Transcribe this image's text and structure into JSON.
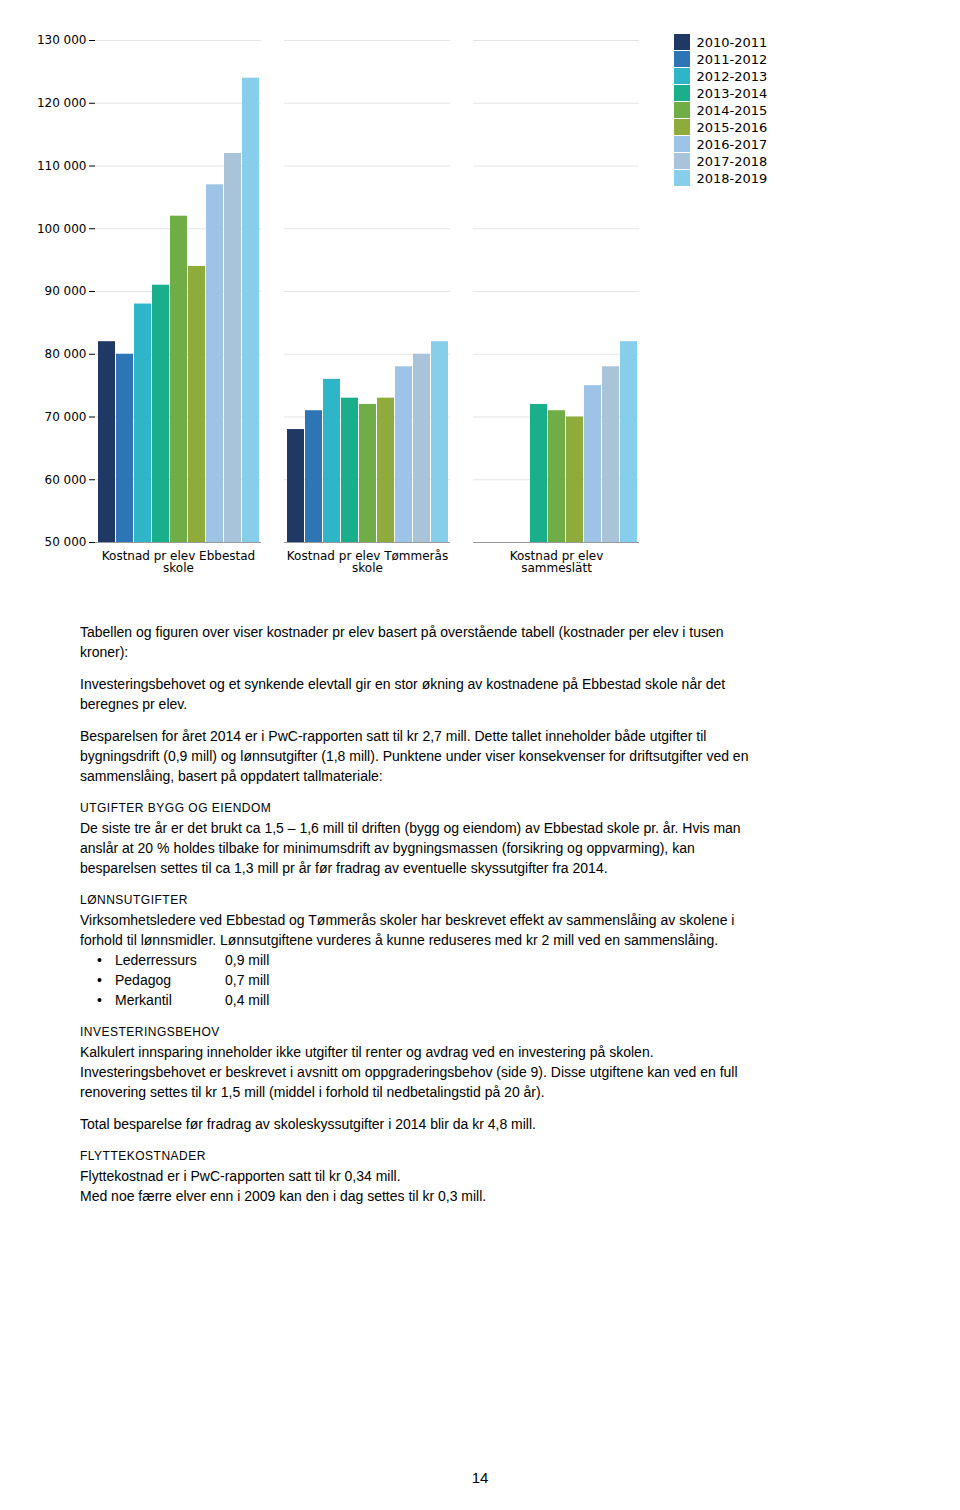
{
  "chart_data": {
    "type": "bar",
    "categories": [
      "Kostnad pr elev Ebbestad\nskole",
      "Kostnad pr elev Tømmerås\nskole",
      "Kostnad pr elev\nsammeslätt"
    ],
    "series": [
      {
        "name": "2010-2011",
        "color": "#1F3864",
        "values": [
          82000,
          68000,
          null
        ]
      },
      {
        "name": "2011-2012",
        "color": "#2E75B6",
        "values": [
          80000,
          71000,
          null
        ]
      },
      {
        "name": "2012-2013",
        "color": "#2EB6C8",
        "values": [
          88000,
          76000,
          null
        ]
      },
      {
        "name": "2013-2014",
        "color": "#1AAF8B",
        "values": [
          91000,
          73000,
          72000
        ]
      },
      {
        "name": "2014-2015",
        "color": "#70AD47",
        "values": [
          102000,
          72000,
          71000
        ]
      },
      {
        "name": "2015-2016",
        "color": "#8FAB3C",
        "values": [
          94000,
          73000,
          70000
        ]
      },
      {
        "name": "2016-2017",
        "color": "#9DC3E6",
        "values": [
          107000,
          78000,
          75000
        ]
      },
      {
        "name": "2017-2018",
        "color": "#A9C4D9",
        "values": [
          112000,
          80000,
          78000
        ]
      },
      {
        "name": "2018-2019",
        "color": "#87CEEB",
        "values": [
          124000,
          82000,
          82000
        ]
      }
    ],
    "ylim": [
      50000,
      130000
    ],
    "yticks": [
      {
        "value": 50000,
        "label": "50 000"
      },
      {
        "value": 60000,
        "label": "60 000"
      },
      {
        "value": 70000,
        "label": "70 000"
      },
      {
        "value": 80000,
        "label": "80 000"
      },
      {
        "value": 90000,
        "label": "90 000"
      },
      {
        "value": 100000,
        "label": "100 000"
      },
      {
        "value": 110000,
        "label": "110 000"
      },
      {
        "value": 120000,
        "label": "120 000"
      },
      {
        "value": 130000,
        "label": "130 000"
      }
    ],
    "grid": true,
    "legend": "upper right",
    "annotations": [
      [
        "Tabellen og figuren over viser kostnader pr elev basert på overstående tabell (kostnader per elev i tusen",
        "kroner):"
      ],
      [
        "Investeringsbehovet og et synkende elevtall gir en stor økning av kostnadene på Ebbestad skole når det",
        "beregnes pr elev."
      ],
      [
        "Besparelsen for året 2014 er i PwC-rapporten satt til kr 2,7 mill. Dette tallet inneholder både utgifter til",
        "bygningsdrift (0,9 mill) og  lønnsutgifter (1,8 mill). Punktene under viser konsekvenser for driftsutgifter ved en",
        "sammenslåing, basert på oppdatert tallmateriale:"
      ],
      [
        "UTGIFTER BYGG OG EIENDOM",
        "De siste tre år er det brukt ca 1,5 – 1,6 mill til driften (bygg og eiendom) av Ebbestad skole pr. år. Hvis man",
        "anslår at 20 % holdes tilbake for minimumsdrift av bygningsmassen (forsikring og oppvarming), kan",
        "besparelsen settes til ca 1,3 mill pr år før fradrag av eventuelle skyssutgifter fra 2014."
      ],
      [
        "LØNNSUTGIFTER",
        "Virksomhetsledere ved Ebbestad og Tømmerås skoler har beskrevet effekt av sammenslåing av skolene i",
        "forhold til lønnsmidler. Lønnsutgiftene vurderes å kunne  reduseres med kr 2 mill ved en sammenslåing.",
        [
          "•",
          "Lederressurs",
          "0,9 mill"
        ],
        [
          "•",
          "Pedagog",
          "0,7 mill"
        ],
        [
          "•",
          "Merkantil",
          "0,4 mill"
        ]
      ],
      [
        "INVESTERINGSBEHOV",
        "Kalkulert innsparing inneholder ikke utgifter til renter og avdrag ved en investering på skolen.",
        "Investeringsbehovet er beskrevet i avsnitt om oppgraderingsbehov (side 9). Disse utgiftene kan ved en full",
        "renovering settes til kr 1,5 mill (middel i forhold til nedbetalingstid på 20 år)."
      ],
      [
        "Total besparelse før fradrag av skoleskyssutgifter i 2014 blir da kr 4,8 mill."
      ],
      [
        "FLYTTEKOSTNADER",
        "Flyttekostnad er i PwC-rapporten satt til kr 0,34 mill.",
        "Med noe færre elver enn i 2009 kan den i dag settes til kr 0,3 mill."
      ]
    ],
    "caption": "14"
  }
}
